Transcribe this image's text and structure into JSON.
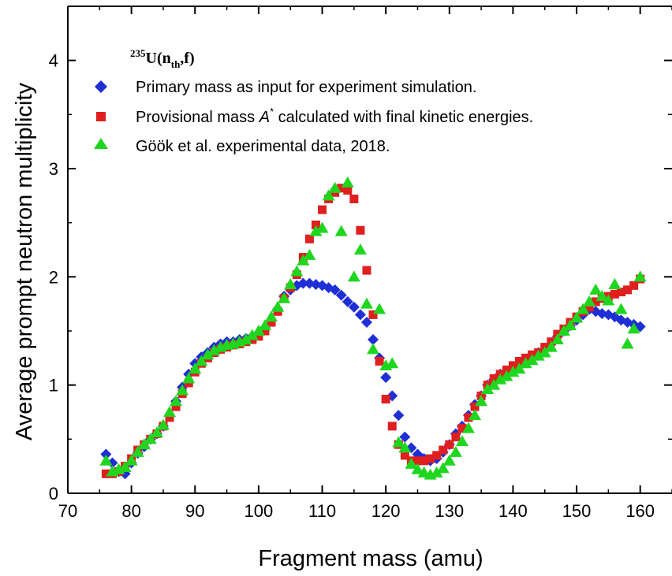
{
  "chart_data": {
    "type": "scatter",
    "title": "",
    "xlabel": "Fragment mass (amu)",
    "ylabel": "Average prompt neutron multiplicity",
    "xlim": [
      70,
      165
    ],
    "ylim": [
      0,
      4.5
    ],
    "xticks": [
      70,
      80,
      90,
      100,
      110,
      120,
      130,
      140,
      150,
      160
    ],
    "yticks": [
      0,
      1,
      2,
      3,
      4
    ],
    "grid": false,
    "legend_position": "top-left",
    "annotation": {
      "mass_number": "235",
      "element": "U(n",
      "subscript": "th",
      "tail": ",f)"
    },
    "series": [
      {
        "name": "Primary mass as input for experiment simulation.",
        "marker": "diamond",
        "color": "#1f2fd6",
        "x": [
          76,
          77,
          78,
          79,
          80,
          81,
          82,
          83,
          84,
          85,
          86,
          87,
          88,
          89,
          90,
          91,
          92,
          93,
          94,
          95,
          96,
          97,
          98,
          99,
          100,
          101,
          102,
          103,
          104,
          105,
          106,
          107,
          108,
          109,
          110,
          111,
          112,
          113,
          114,
          115,
          116,
          117,
          118,
          119,
          120,
          121,
          122,
          123,
          124,
          125,
          126,
          127,
          128,
          129,
          130,
          131,
          132,
          133,
          134,
          135,
          136,
          137,
          138,
          139,
          140,
          141,
          142,
          143,
          144,
          145,
          146,
          147,
          148,
          149,
          150,
          151,
          152,
          153,
          154,
          155,
          156,
          157,
          158,
          159,
          160
        ],
        "y": [
          0.36,
          0.28,
          0.2,
          0.18,
          0.28,
          0.37,
          0.43,
          0.5,
          0.55,
          0.62,
          0.72,
          0.85,
          0.98,
          1.1,
          1.2,
          1.26,
          1.3,
          1.35,
          1.38,
          1.4,
          1.4,
          1.42,
          1.43,
          1.45,
          1.48,
          1.53,
          1.6,
          1.7,
          1.82,
          1.88,
          1.92,
          1.94,
          1.94,
          1.93,
          1.92,
          1.9,
          1.88,
          1.83,
          1.77,
          1.72,
          1.65,
          1.58,
          1.42,
          1.25,
          1.07,
          0.9,
          0.72,
          0.52,
          0.42,
          0.36,
          0.32,
          0.3,
          0.32,
          0.38,
          0.45,
          0.55,
          0.62,
          0.72,
          0.82,
          0.9,
          1.0,
          1.05,
          1.1,
          1.13,
          1.16,
          1.2,
          1.23,
          1.27,
          1.3,
          1.33,
          1.38,
          1.45,
          1.5,
          1.55,
          1.6,
          1.65,
          1.7,
          1.68,
          1.66,
          1.65,
          1.63,
          1.6,
          1.58,
          1.56,
          1.54
        ]
      },
      {
        "name": "Provisional mass A* calculated with final kinetic energies.",
        "marker": "square",
        "color": "#e01f1f",
        "x": [
          76,
          77,
          78,
          79,
          80,
          81,
          82,
          83,
          84,
          85,
          86,
          87,
          88,
          89,
          90,
          91,
          92,
          93,
          94,
          95,
          96,
          97,
          98,
          99,
          100,
          101,
          102,
          103,
          104,
          105,
          106,
          107,
          108,
          109,
          110,
          111,
          112,
          113,
          114,
          115,
          116,
          117,
          118,
          119,
          120,
          121,
          122,
          123,
          124,
          125,
          126,
          127,
          128,
          129,
          130,
          131,
          132,
          133,
          134,
          135,
          136,
          137,
          138,
          139,
          140,
          141,
          142,
          143,
          144,
          145,
          146,
          147,
          148,
          149,
          150,
          151,
          152,
          153,
          154,
          155,
          156,
          157,
          158,
          159,
          160
        ],
        "y": [
          0.18,
          0.18,
          0.2,
          0.25,
          0.32,
          0.4,
          0.45,
          0.5,
          0.55,
          0.62,
          0.7,
          0.8,
          0.92,
          1.02,
          1.12,
          1.2,
          1.25,
          1.3,
          1.33,
          1.35,
          1.37,
          1.38,
          1.4,
          1.42,
          1.45,
          1.5,
          1.58,
          1.68,
          1.8,
          1.9,
          2.02,
          2.18,
          2.35,
          2.48,
          2.62,
          2.72,
          2.78,
          2.82,
          2.8,
          2.72,
          2.43,
          2.06,
          1.65,
          1.22,
          0.87,
          0.62,
          0.45,
          0.35,
          0.3,
          0.3,
          0.3,
          0.32,
          0.35,
          0.4,
          0.45,
          0.52,
          0.6,
          0.7,
          0.8,
          0.9,
          1.0,
          1.06,
          1.1,
          1.14,
          1.18,
          1.22,
          1.25,
          1.28,
          1.3,
          1.35,
          1.4,
          1.47,
          1.52,
          1.58,
          1.63,
          1.68,
          1.72,
          1.77,
          1.8,
          1.82,
          1.84,
          1.86,
          1.88,
          1.92,
          1.98
        ]
      },
      {
        "name": "Göök et al. experimental data, 2018.",
        "marker": "triangle",
        "color": "#1fd61f",
        "x": [
          76,
          77,
          78,
          79,
          80,
          81,
          82,
          83,
          84,
          85,
          86,
          87,
          88,
          89,
          90,
          91,
          92,
          93,
          94,
          95,
          96,
          97,
          98,
          99,
          100,
          101,
          102,
          103,
          104,
          105,
          106,
          107,
          108,
          109,
          110,
          111,
          112,
          113,
          114,
          115,
          116,
          117,
          118,
          119,
          120,
          121,
          122,
          123,
          124,
          125,
          126,
          127,
          128,
          129,
          130,
          131,
          132,
          133,
          134,
          135,
          136,
          137,
          138,
          139,
          140,
          141,
          142,
          143,
          144,
          145,
          146,
          147,
          148,
          149,
          150,
          151,
          152,
          153,
          154,
          155,
          156,
          157,
          158,
          159,
          160
        ],
        "y": [
          0.3,
          0.2,
          0.22,
          0.24,
          0.3,
          0.38,
          0.45,
          0.5,
          0.56,
          0.63,
          0.75,
          0.85,
          0.95,
          1.06,
          1.15,
          1.22,
          1.28,
          1.32,
          1.35,
          1.37,
          1.38,
          1.4,
          1.42,
          1.46,
          1.5,
          1.55,
          1.63,
          1.72,
          1.8,
          1.93,
          2.05,
          2.15,
          2.2,
          2.42,
          2.45,
          2.75,
          2.82,
          2.42,
          2.87,
          2.0,
          2.25,
          1.75,
          1.33,
          1.7,
          1.18,
          1.2,
          0.47,
          0.42,
          0.27,
          0.22,
          0.19,
          0.17,
          0.19,
          0.23,
          0.3,
          0.38,
          0.48,
          0.6,
          0.72,
          0.85,
          0.96,
          1.0,
          1.05,
          1.08,
          1.12,
          1.15,
          1.2,
          1.23,
          1.27,
          1.3,
          1.35,
          1.42,
          1.5,
          1.55,
          1.62,
          1.7,
          1.77,
          1.88,
          1.82,
          1.78,
          1.93,
          1.7,
          1.38,
          1.52,
          2.0
        ]
      }
    ]
  }
}
